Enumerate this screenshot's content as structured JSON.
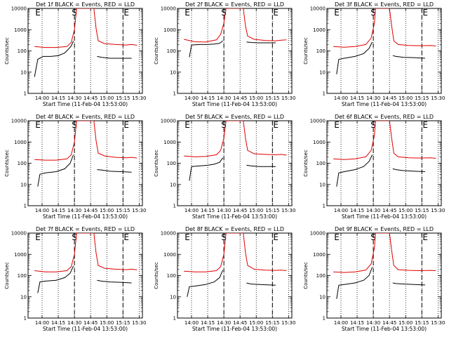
{
  "colors": {
    "events": "#000000",
    "lld": "#e00000"
  },
  "chart_data": [
    {
      "type": "line",
      "title": "Det 1f BLACK = Events, RED = LLD",
      "xlabel": "Start Time (11-Feb-04 13:53:00)",
      "ylabel": "Counts/sec",
      "yscale": "log",
      "ylim": [
        1,
        10000
      ],
      "x_ticks": [
        "14:00",
        "14:15",
        "14:30",
        "14:45",
        "15:00",
        "15:15",
        "15:30"
      ],
      "y_ticks": [
        "1",
        "10",
        "100",
        "1000",
        "10000"
      ],
      "markers": [
        {
          "label": "E",
          "t": 0
        },
        {
          "label": "S",
          "t": 37
        },
        {
          "label": "E",
          "t": 82
        }
      ],
      "series": [
        {
          "name": "LLD",
          "color": "#e00000",
          "t": [
            0,
            10,
            20,
            30,
            34,
            37,
            39,
            55,
            57,
            59,
            65,
            75,
            85,
            90,
            95
          ],
          "v": [
            160,
            145,
            145,
            160,
            250,
            1000,
            10000,
            10000,
            1200,
            300,
            220,
            200,
            190,
            200,
            185
          ]
        },
        {
          "name": "Events",
          "color": "#000000",
          "t": [
            0,
            3,
            8,
            15,
            22,
            28,
            32,
            34,
            36
          ],
          "v": [
            6,
            40,
            55,
            55,
            60,
            80,
            130,
            170,
            290
          ]
        },
        {
          "name": "Events",
          "color": "#000000",
          "t": [
            58,
            62,
            70,
            80,
            90
          ],
          "v": [
            55,
            50,
            45,
            45,
            45
          ]
        }
      ]
    },
    {
      "type": "line",
      "title": "Det 2f BLACK = Events, RED = LLD",
      "xlabel": "Start Time (11-Feb-04 13:53:00)",
      "ylabel": "Counts/sec",
      "yscale": "log",
      "ylim": [
        1,
        10000
      ],
      "x_ticks": [
        "14:00",
        "14:15",
        "14:30",
        "14:45",
        "15:00",
        "15:15",
        "15:30"
      ],
      "y_ticks": [
        "1",
        "10",
        "100",
        "1000",
        "10000"
      ],
      "markers": [
        {
          "label": "E",
          "t": 0
        },
        {
          "label": "S",
          "t": 37
        },
        {
          "label": "E",
          "t": 82
        }
      ],
      "series": [
        {
          "name": "LLD",
          "color": "#e00000",
          "t": [
            0,
            10,
            20,
            30,
            34,
            37,
            39,
            55,
            57,
            59,
            65,
            75,
            85,
            90,
            95
          ],
          "v": [
            350,
            270,
            260,
            330,
            600,
            2000,
            10000,
            10000,
            1500,
            500,
            350,
            310,
            300,
            320,
            330
          ]
        },
        {
          "name": "Events",
          "color": "#000000",
          "t": [
            5,
            7,
            15,
            22,
            28,
            33,
            36
          ],
          "v": [
            50,
            190,
            200,
            200,
            210,
            230,
            300
          ]
        },
        {
          "name": "Events",
          "color": "#000000",
          "t": [
            58,
            62,
            70,
            80,
            85
          ],
          "v": [
            260,
            250,
            240,
            240,
            240
          ]
        }
      ]
    },
    {
      "type": "line",
      "title": "Det 3f BLACK = Events, RED = LLD",
      "xlabel": "Start Time (11-Feb-04 13:53:00)",
      "ylabel": "Counts/sec",
      "yscale": "log",
      "ylim": [
        1,
        10000
      ],
      "x_ticks": [
        "14:00",
        "14:15",
        "14:30",
        "14:45",
        "15:00",
        "15:15",
        "15:30"
      ],
      "y_ticks": [
        "1",
        "10",
        "100",
        "1000",
        "10000"
      ],
      "markers": [
        {
          "label": "E",
          "t": 0
        },
        {
          "label": "S",
          "t": 37
        },
        {
          "label": "E",
          "t": 82
        }
      ],
      "series": [
        {
          "name": "LLD",
          "color": "#e00000",
          "t": [
            0,
            10,
            20,
            30,
            35,
            38,
            39,
            52,
            54,
            56,
            60,
            70,
            80,
            90,
            95
          ],
          "v": [
            160,
            150,
            160,
            200,
            400,
            2000,
            10000,
            10000,
            1500,
            300,
            200,
            180,
            175,
            180,
            170
          ]
        },
        {
          "name": "Events",
          "color": "#000000",
          "t": [
            3,
            5,
            10,
            20,
            28,
            33,
            36
          ],
          "v": [
            8,
            40,
            45,
            55,
            75,
            130,
            260
          ]
        },
        {
          "name": "Events",
          "color": "#000000",
          "t": [
            55,
            58,
            65,
            75,
            85
          ],
          "v": [
            60,
            55,
            50,
            48,
            45
          ]
        }
      ]
    },
    {
      "type": "line",
      "title": "Det 4f BLACK = Events, RED = LLD",
      "xlabel": "Start Time (11-Feb-04 13:53:00)",
      "ylabel": "Counts/sec",
      "yscale": "log",
      "ylim": [
        1,
        10000
      ],
      "x_ticks": [
        "14:00",
        "14:15",
        "14:30",
        "14:45",
        "15:00",
        "15:15",
        "15:30"
      ],
      "y_ticks": [
        "1",
        "10",
        "100",
        "1000",
        "10000"
      ],
      "markers": [
        {
          "label": "E",
          "t": 0
        },
        {
          "label": "S",
          "t": 37
        },
        {
          "label": "E",
          "t": 82
        }
      ],
      "series": [
        {
          "name": "LLD",
          "color": "#e00000",
          "t": [
            0,
            10,
            20,
            30,
            34,
            37,
            39,
            55,
            57,
            59,
            65,
            75,
            85,
            90,
            95
          ],
          "v": [
            150,
            140,
            140,
            160,
            250,
            1000,
            10000,
            10000,
            1200,
            300,
            220,
            190,
            180,
            190,
            175
          ]
        },
        {
          "name": "Events",
          "color": "#000000",
          "t": [
            3,
            5,
            10,
            20,
            28,
            33,
            36
          ],
          "v": [
            8,
            30,
            35,
            40,
            55,
            100,
            250
          ]
        },
        {
          "name": "Events",
          "color": "#000000",
          "t": [
            58,
            62,
            70,
            80,
            90
          ],
          "v": [
            50,
            48,
            42,
            40,
            38
          ]
        }
      ]
    },
    {
      "type": "line",
      "title": "Det 5f BLACK = Events, RED = LLD",
      "xlabel": "Start Time (11-Feb-04 13:53:00)",
      "ylabel": "Counts/sec",
      "yscale": "log",
      "ylim": [
        1,
        10000
      ],
      "x_ticks": [
        "14:00",
        "14:15",
        "14:30",
        "14:45",
        "15:00",
        "15:15",
        "15:30"
      ],
      "y_ticks": [
        "1",
        "10",
        "100",
        "1000",
        "10000"
      ],
      "markers": [
        {
          "label": "E",
          "t": 0
        },
        {
          "label": "S",
          "t": 37
        },
        {
          "label": "E",
          "t": 82
        }
      ],
      "series": [
        {
          "name": "LLD",
          "color": "#e00000",
          "t": [
            0,
            10,
            20,
            30,
            34,
            37,
            39,
            55,
            57,
            59,
            65,
            75,
            85,
            90,
            95
          ],
          "v": [
            220,
            200,
            210,
            250,
            400,
            1500,
            10000,
            10000,
            1500,
            400,
            280,
            260,
            250,
            260,
            240
          ]
        },
        {
          "name": "Events",
          "color": "#000000",
          "t": [
            5,
            7,
            15,
            22,
            28,
            33,
            36
          ],
          "v": [
            15,
            70,
            75,
            80,
            90,
            110,
            180
          ]
        },
        {
          "name": "Events",
          "color": "#000000",
          "t": [
            58,
            62,
            70,
            80,
            85
          ],
          "v": [
            80,
            75,
            70,
            70,
            70
          ]
        }
      ]
    },
    {
      "type": "line",
      "title": "Det 6f BLACK = Events, RED = LLD",
      "xlabel": "Start Time (11-Feb-04 13:53:00)",
      "ylabel": "Counts/sec",
      "yscale": "log",
      "ylim": [
        1,
        10000
      ],
      "x_ticks": [
        "14:00",
        "14:15",
        "14:30",
        "14:45",
        "15:00",
        "15:15",
        "15:30"
      ],
      "y_ticks": [
        "1",
        "10",
        "100",
        "1000",
        "10000"
      ],
      "markers": [
        {
          "label": "E",
          "t": 0
        },
        {
          "label": "S",
          "t": 37
        },
        {
          "label": "E",
          "t": 82
        }
      ],
      "series": [
        {
          "name": "LLD",
          "color": "#e00000",
          "t": [
            0,
            10,
            20,
            30,
            35,
            38,
            39,
            52,
            54,
            56,
            60,
            70,
            80,
            90,
            95
          ],
          "v": [
            160,
            150,
            160,
            200,
            400,
            2000,
            10000,
            10000,
            1500,
            300,
            200,
            180,
            175,
            180,
            170
          ]
        },
        {
          "name": "Events",
          "color": "#000000",
          "t": [
            3,
            5,
            10,
            20,
            28,
            33,
            36
          ],
          "v": [
            8,
            35,
            40,
            50,
            70,
            120,
            250
          ]
        },
        {
          "name": "Events",
          "color": "#000000",
          "t": [
            55,
            58,
            65,
            75,
            85
          ],
          "v": [
            55,
            50,
            45,
            42,
            40
          ]
        }
      ]
    },
    {
      "type": "line",
      "title": "Det 7f BLACK = Events, RED = LLD",
      "xlabel": "Start Time (11-Feb-04 13:53:00)",
      "ylabel": "Counts/sec",
      "yscale": "log",
      "ylim": [
        1,
        10000
      ],
      "x_ticks": [
        "14:00",
        "14:15",
        "14:30",
        "14:45",
        "15:00",
        "15:15",
        "15:30"
      ],
      "y_ticks": [
        "1",
        "10",
        "100",
        "1000",
        "10000"
      ],
      "markers": [
        {
          "label": "E",
          "t": 0
        },
        {
          "label": "S",
          "t": 37
        },
        {
          "label": "E",
          "t": 82
        }
      ],
      "series": [
        {
          "name": "LLD",
          "color": "#e00000",
          "t": [
            0,
            10,
            20,
            30,
            34,
            37,
            39,
            55,
            57,
            59,
            65,
            75,
            85,
            90,
            95
          ],
          "v": [
            170,
            150,
            150,
            170,
            260,
            1000,
            10000,
            10000,
            1200,
            300,
            220,
            200,
            190,
            200,
            185
          ]
        },
        {
          "name": "Events",
          "color": "#000000",
          "t": [
            3,
            5,
            10,
            20,
            28,
            33,
            36
          ],
          "v": [
            15,
            50,
            55,
            60,
            80,
            130,
            280
          ]
        },
        {
          "name": "Events",
          "color": "#000000",
          "t": [
            58,
            62,
            70,
            80,
            90
          ],
          "v": [
            60,
            55,
            50,
            48,
            45
          ]
        }
      ]
    },
    {
      "type": "line",
      "title": "Det 8f BLACK = Events, RED = LLD",
      "xlabel": "Start Time (11-Feb-04 13:53:00)",
      "ylabel": "Counts/sec",
      "yscale": "log",
      "ylim": [
        1,
        10000
      ],
      "x_ticks": [
        "14:00",
        "14:15",
        "14:30",
        "14:45",
        "15:00",
        "15:15",
        "15:30"
      ],
      "y_ticks": [
        "1",
        "10",
        "100",
        "1000",
        "10000"
      ],
      "markers": [
        {
          "label": "E",
          "t": 0
        },
        {
          "label": "S",
          "t": 37
        },
        {
          "label": "E",
          "t": 82
        }
      ],
      "series": [
        {
          "name": "LLD",
          "color": "#e00000",
          "t": [
            0,
            10,
            20,
            30,
            34,
            37,
            39,
            55,
            57,
            59,
            65,
            75,
            85,
            90,
            95
          ],
          "v": [
            160,
            150,
            150,
            170,
            260,
            1000,
            10000,
            10000,
            1200,
            300,
            200,
            180,
            175,
            180,
            170
          ]
        },
        {
          "name": "Events",
          "color": "#000000",
          "t": [
            3,
            5,
            10,
            20,
            28,
            33,
            36
          ],
          "v": [
            10,
            30,
            32,
            38,
            50,
            80,
            180
          ]
        },
        {
          "name": "Events",
          "color": "#000000",
          "t": [
            58,
            62,
            70,
            80,
            85
          ],
          "v": [
            45,
            40,
            38,
            36,
            35
          ]
        }
      ]
    },
    {
      "type": "line",
      "title": "Det 9f BLACK = Events, RED = LLD",
      "xlabel": "Start Time (11-Feb-04 13:53:00)",
      "ylabel": "Counts/sec",
      "yscale": "log",
      "ylim": [
        1,
        10000
      ],
      "x_ticks": [
        "14:00",
        "14:15",
        "14:30",
        "14:45",
        "15:00",
        "15:15",
        "15:30"
      ],
      "y_ticks": [
        "1",
        "10",
        "100",
        "1000",
        "10000"
      ],
      "markers": [
        {
          "label": "E",
          "t": 0
        },
        {
          "label": "S",
          "t": 37
        },
        {
          "label": "E",
          "t": 82
        }
      ],
      "series": [
        {
          "name": "LLD",
          "color": "#e00000",
          "t": [
            0,
            10,
            20,
            30,
            35,
            38,
            39,
            52,
            54,
            56,
            60,
            70,
            80,
            90,
            95
          ],
          "v": [
            150,
            140,
            150,
            180,
            350,
            2000,
            10000,
            10000,
            1500,
            300,
            190,
            175,
            170,
            175,
            170
          ]
        },
        {
          "name": "Events",
          "color": "#000000",
          "t": [
            3,
            5,
            10,
            20,
            28,
            33,
            36
          ],
          "v": [
            8,
            35,
            38,
            45,
            60,
            100,
            250
          ]
        },
        {
          "name": "Events",
          "color": "#000000",
          "t": [
            55,
            58,
            65,
            75,
            85
          ],
          "v": [
            45,
            42,
            40,
            38,
            36
          ]
        }
      ]
    }
  ]
}
